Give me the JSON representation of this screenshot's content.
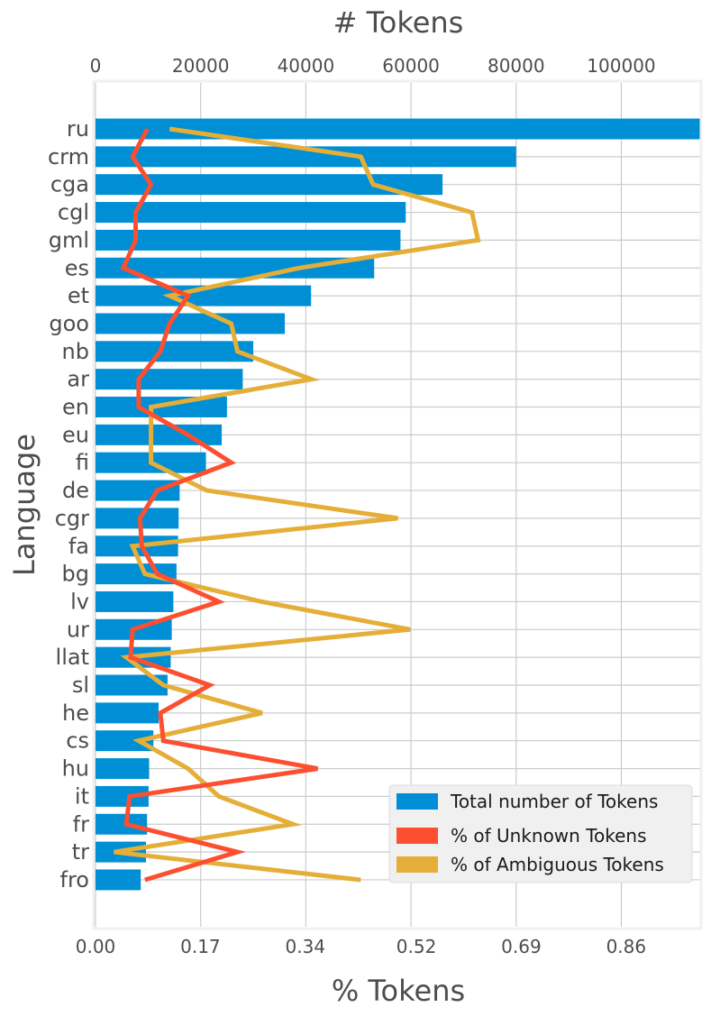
{
  "chart_data": {
    "type": "bar",
    "orientation": "horizontal",
    "title": "# Tokens",
    "top_xlabel": "# Tokens",
    "bottom_xlabel": "% Tokens",
    "ylabel": "Language",
    "top_xlim": [
      0,
      115000
    ],
    "top_xticks": [
      0,
      20000,
      40000,
      60000,
      80000,
      100000
    ],
    "top_xtick_labels": [
      "0",
      "20000",
      "40000",
      "60000",
      "80000",
      "100000"
    ],
    "bottom_xlim": [
      0,
      0.98
    ],
    "bottom_xticks": [
      0.0,
      0.17,
      0.34,
      0.52,
      0.69,
      0.86
    ],
    "bottom_xtick_labels": [
      "0.00",
      "0.17",
      "0.34",
      "0.52",
      "0.69",
      "0.86"
    ],
    "categories": [
      "ru",
      "crm",
      "cga",
      "cgl",
      "gml",
      "es",
      "et",
      "goo",
      "nb",
      "ar",
      "en",
      "eu",
      "fi",
      "de",
      "cgr",
      "fa",
      "bg",
      "lv",
      "ur",
      "llat",
      "sl",
      "he",
      "cs",
      "hu",
      "it",
      "fr",
      "tr",
      "fro"
    ],
    "grid": true,
    "legend_position": "bottom-right",
    "series": [
      {
        "name": "Total number of Tokens",
        "kind": "bar",
        "axis": "top",
        "color": "#008fd5",
        "values": [
          115000,
          80000,
          66000,
          59000,
          58000,
          53000,
          41000,
          36000,
          30000,
          28000,
          25000,
          24000,
          21000,
          16000,
          15800,
          15700,
          15400,
          14800,
          14500,
          14300,
          13700,
          12000,
          11000,
          10200,
          10100,
          9800,
          9600,
          8600
        ]
      },
      {
        "name": "% of Unknown Tokens",
        "kind": "line",
        "axis": "bottom",
        "color": "#fc4f30",
        "values": [
          0.084,
          0.06,
          0.09,
          0.065,
          0.065,
          0.045,
          0.15,
          0.12,
          0.105,
          0.07,
          0.07,
          0.15,
          0.22,
          0.1,
          0.072,
          0.075,
          0.1,
          0.2,
          0.06,
          0.057,
          0.185,
          0.105,
          0.11,
          0.36,
          0.055,
          0.05,
          0.23,
          0.08
        ]
      },
      {
        "name": "% of Ambiguous Tokens",
        "kind": "line",
        "axis": "bottom",
        "color": "#e5ae38",
        "values": [
          0.12,
          0.43,
          0.45,
          0.61,
          0.62,
          0.33,
          0.12,
          0.22,
          0.23,
          0.35,
          0.09,
          0.09,
          0.09,
          0.18,
          0.49,
          0.06,
          0.08,
          0.27,
          0.51,
          0.05,
          0.11,
          0.27,
          0.07,
          0.15,
          0.2,
          0.32,
          0.03,
          0.43
        ]
      }
    ]
  }
}
